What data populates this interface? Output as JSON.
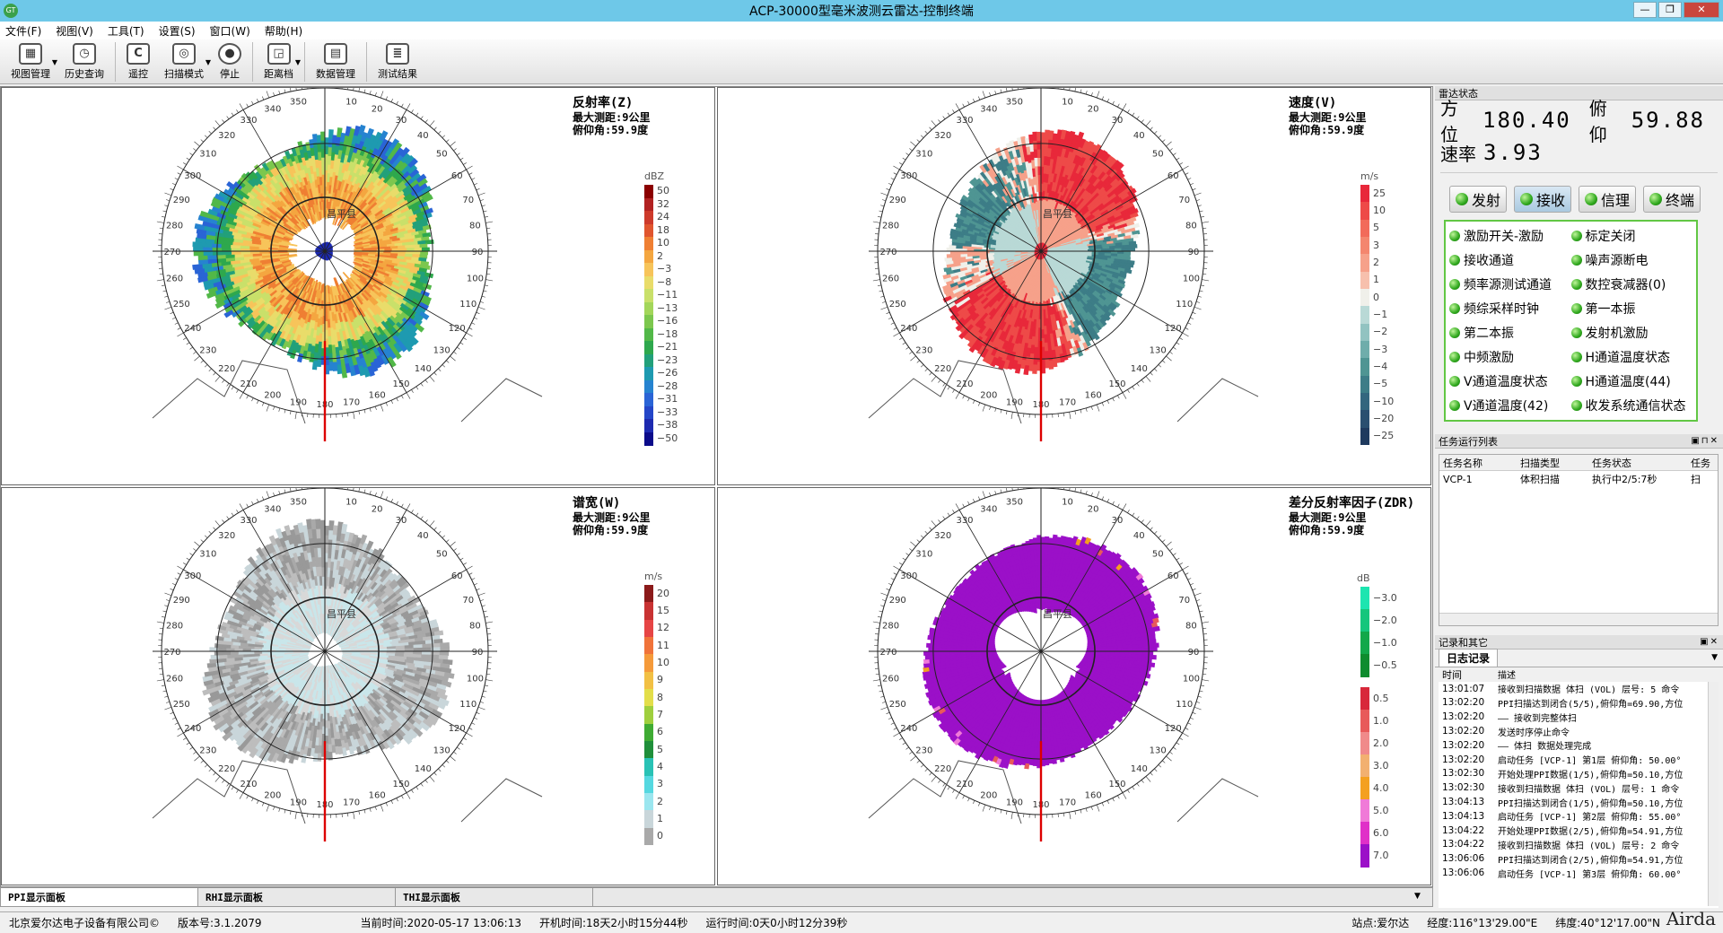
{
  "window": {
    "title": "ACP-30000型毫米波测云雷达-控制终端",
    "icon": "app-logo",
    "controls": [
      "minimize-icon",
      "restore-icon",
      "close-icon"
    ]
  },
  "menu": [
    "文件(F)",
    "视图(V)",
    "工具(T)",
    "设置(S)",
    "窗口(W)",
    "帮助(H)"
  ],
  "toolbar": [
    {
      "label": "视图管理",
      "icon": "view-manage-icon",
      "dropdown": true
    },
    {
      "label": "历史查询",
      "icon": "history-icon"
    },
    {
      "label": "遥控",
      "icon": "remote-icon"
    },
    {
      "label": "扫描模式",
      "icon": "scan-mode-icon",
      "dropdown": true
    },
    {
      "label": "停止",
      "icon": "stop-icon"
    },
    {
      "label": "距离档",
      "icon": "range-icon",
      "dropdown": true
    },
    {
      "label": "数据管理",
      "icon": "data-manage-icon"
    },
    {
      "label": "测试结果",
      "icon": "test-result-icon"
    }
  ],
  "panels": [
    {
      "title": "反射率(Z)",
      "info1": "最大测距:9公里",
      "info2": "俯仰角:59.9度",
      "unit": "dBZ",
      "labels": [
        "50",
        "32",
        "24",
        "18",
        "10",
        "2",
        "−3",
        "−8",
        "−11",
        "−13",
        "−16",
        "−18",
        "−21",
        "−23",
        "−26",
        "−28",
        "−31",
        "−33",
        "−38",
        "−50"
      ],
      "colors": [
        "#8b0000",
        "#b22222",
        "#cd3a2b",
        "#e0552e",
        "#ef7f33",
        "#f4a640",
        "#f7c45a",
        "#e9dc6a",
        "#c9e06a",
        "#a3d65a",
        "#7cc74e",
        "#52b848",
        "#2ea84d",
        "#22a07a",
        "#1e9ab0",
        "#2683d0",
        "#2a64d6",
        "#2446c8",
        "#1d2ab0",
        "#0b0b8a"
      ]
    },
    {
      "title": "速度(V)",
      "info1": "最大测距:9公里",
      "info2": "俯仰角:59.9度",
      "unit": "m/s",
      "labels": [
        "25",
        "10",
        "5",
        "3",
        "2",
        "1",
        "0",
        "−1",
        "−2",
        "−3",
        "−4",
        "−5",
        "−10",
        "−20",
        "−25"
      ],
      "colors": [
        "#e8283a",
        "#ee4a48",
        "#f26b5a",
        "#f4866e",
        "#f6a18a",
        "#f7c0ad",
        "#f0f0ea",
        "#b9d9d6",
        "#92c3c1",
        "#6fadab",
        "#4f9593",
        "#3d7d87",
        "#33667e",
        "#2a4f70",
        "#1f3a5e"
      ]
    },
    {
      "title": "谱宽(W)",
      "info1": "最大测距:9公里",
      "info2": "俯仰角:59.9度",
      "unit": "m/s",
      "labels": [
        "20",
        "15",
        "12",
        "11",
        "10",
        "9",
        "8",
        "7",
        "6",
        "5",
        "4",
        "3",
        "2",
        "1",
        "0"
      ],
      "colors": [
        "#8b1a1a",
        "#c83232",
        "#e64545",
        "#f0733a",
        "#f59a3a",
        "#f2c044",
        "#e3de4a",
        "#9fcf3e",
        "#3fab33",
        "#1f8f3a",
        "#29c2b5",
        "#55d8e0",
        "#9be6ef",
        "#c9d6da",
        "#a9a9a9"
      ]
    },
    {
      "title": "差分反射率因子(ZDR)",
      "info1": "最大测距:9公里",
      "info2": "俯仰角:59.9度",
      "unit": "dB",
      "labels": [
        "−3.0",
        "−2.0",
        "−1.0",
        "−0.5",
        "0.5",
        "1.0",
        "2.0",
        "3.0",
        "4.0",
        "5.0",
        "6.0",
        "7.0"
      ],
      "colors": [
        "#1de5b0",
        "#16c67c",
        "#12a84a",
        "#0e8c2e",
        "#d8283a",
        "#e85a5a",
        "#f08a8a",
        "#f2b070",
        "#f4a020",
        "#f07ad8",
        "#e030c8",
        "#9b10c8"
      ]
    }
  ],
  "ppi": {
    "range_km": 9,
    "elevation_deg": 59.9,
    "azimuth_labels": [
      "10",
      "20",
      "30",
      "40",
      "50",
      "60",
      "70",
      "80",
      "90",
      "100",
      "110",
      "120",
      "130",
      "140",
      "150",
      "160",
      "170",
      "180",
      "190",
      "200",
      "210",
      "220",
      "230",
      "240",
      "250",
      "260",
      "270",
      "280",
      "290",
      "300",
      "310",
      "320",
      "330",
      "340",
      "350"
    ],
    "site_label": "昌平县",
    "site_label_panel3": "昌平县"
  },
  "bottom_tabs": [
    "PPI显示面板",
    "RHI显示面板",
    "THI显示面板"
  ],
  "radar_state": {
    "header": "雷达状态",
    "az_label": "方位",
    "az_value": "180.40",
    "el_label": "俯仰",
    "el_value": "59.88",
    "rate_label": "速率",
    "rate_value": "3.93"
  },
  "systems": [
    "发射",
    "接收",
    "信理",
    "终端"
  ],
  "status_items": [
    "激励开关-激励",
    "标定关闭",
    "接收通道",
    "噪声源断电",
    "频率源测试通道",
    "数控衰减器(0)",
    "频综采样时钟",
    "第一本振",
    "第二本振",
    "发射机激励",
    "中频激励",
    "H通道温度状态",
    "V通道温度状态",
    "H通道温度(44)",
    "V通道温度(42)",
    "收发系统通信状态"
  ],
  "tasks": {
    "header": "任务运行列表",
    "columns": [
      "任务名称",
      "扫描类型",
      "任务状态",
      "任务"
    ],
    "rows": [
      [
        "VCP-1",
        "体积扫描",
        "执行中2/5:7秒",
        "扫"
      ]
    ]
  },
  "log": {
    "header": "记录和其它",
    "tab": "日志记录",
    "columns": [
      "时间",
      "描述"
    ],
    "rows": [
      [
        "13:01:07",
        "接收到扫描数据 体扫 (VOL) 层号: 5 命令"
      ],
      [
        "13:02:20",
        "PPI扫描达到闭合(5/5),俯仰角=69.90,方位"
      ],
      [
        "13:02:20",
        "—— 接收到完整体扫"
      ],
      [
        "13:02:20",
        "发送时序停止命令"
      ],
      [
        "13:02:20",
        "—— 体扫 数据处理完成"
      ],
      [
        "13:02:20",
        "启动任务 [VCP-1] 第1层 俯仰角: 50.00°"
      ],
      [
        "13:02:30",
        "开始处理PPI数据(1/5),俯仰角=50.10,方位"
      ],
      [
        "13:02:30",
        "接收到扫描数据 体扫 (VOL) 层号: 1 命令"
      ],
      [
        "13:04:13",
        "PPI扫描达到闭合(1/5),俯仰角=50.10,方位"
      ],
      [
        "13:04:13",
        "启动任务 [VCP-1] 第2层 俯仰角: 55.00°"
      ],
      [
        "13:04:22",
        "开始处理PPI数据(2/5),俯仰角=54.91,方位"
      ],
      [
        "13:04:22",
        "接收到扫描数据 体扫 (VOL) 层号: 2 命令"
      ],
      [
        "13:06:06",
        "PPI扫描达到闭合(2/5),俯仰角=54.91,方位"
      ],
      [
        "13:06:06",
        "启动任务 [VCP-1] 第3层 俯仰角: 60.00°"
      ]
    ]
  },
  "status": {
    "company": "北京爱尔达电子设备有限公司©",
    "version": "版本号:3.1.2079",
    "time": "当前时间:2020-05-17 13:06:13",
    "uptime": "开机时间:18天2小时15分44秒",
    "runtime": "运行时间:0天0小时12分39秒",
    "station": "站点:爱尔达",
    "lon": "经度:116°13'29.00\"E",
    "lat": "纬度:40°12'17.00\"N"
  },
  "watermark": "Airda"
}
